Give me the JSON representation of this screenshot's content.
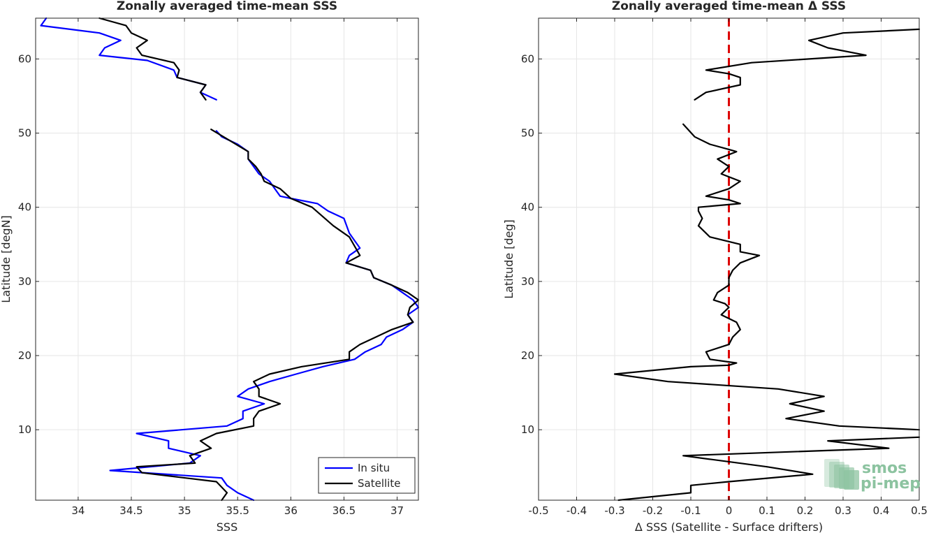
{
  "chart_data": [
    {
      "type": "line",
      "title": "Zonally averaged time-mean SSS",
      "xlabel": "SSS",
      "ylabel": "Latitude [degN]",
      "xlim": [
        33.6,
        37.2
      ],
      "ylim": [
        0.5,
        65.5
      ],
      "xticks": [
        34,
        34.5,
        35,
        35.5,
        36,
        36.5,
        37
      ],
      "xtick_labels": [
        "34",
        "34.5",
        "35",
        "35.5",
        "36",
        "36.5",
        "37"
      ],
      "yticks": [
        10,
        20,
        30,
        40,
        50,
        60
      ],
      "ytick_labels": [
        "10",
        "20",
        "30",
        "40",
        "50",
        "60"
      ],
      "grid": true,
      "legend": {
        "position": "bottom-right",
        "entries": [
          "In situ",
          "Satellite"
        ]
      },
      "series": [
        {
          "name": "In situ",
          "color": "#0000ff",
          "segments": [
            [
              [
                33.65,
                64.5
              ],
              [
                33.7,
                65.5
              ]
            ],
            [
              [
                33.65,
                64.5
              ],
              [
                34.2,
                63.5
              ],
              [
                34.4,
                62.5
              ],
              [
                34.25,
                61.5
              ],
              [
                34.2,
                60.5
              ],
              [
                34.65,
                59.8
              ],
              [
                34.9,
                58.5
              ],
              [
                34.93,
                57.5
              ],
              [
                35.2,
                56.5
              ],
              [
                35.15,
                55.5
              ],
              [
                35.3,
                54.5
              ]
            ],
            [
              [
                35.3,
                50.3
              ],
              [
                35.35,
                49.5
              ],
              [
                35.5,
                48.5
              ],
              [
                35.6,
                47.5
              ],
              [
                35.6,
                46.5
              ],
              [
                35.65,
                45.5
              ],
              [
                35.7,
                44.5
              ],
              [
                35.8,
                43.5
              ],
              [
                35.85,
                42.5
              ],
              [
                35.9,
                41.5
              ],
              [
                36.0,
                41.2
              ],
              [
                36.25,
                40.5
              ],
              [
                36.35,
                39.5
              ],
              [
                36.5,
                38.5
              ],
              [
                36.55,
                36.5
              ],
              [
                36.6,
                35.5
              ],
              [
                36.65,
                34.5
              ],
              [
                36.55,
                33.5
              ],
              [
                36.52,
                32.5
              ],
              [
                36.75,
                31.5
              ],
              [
                36.78,
                30.5
              ],
              [
                36.95,
                29.5
              ],
              [
                37.05,
                28.5
              ],
              [
                37.15,
                27.5
              ],
              [
                37.2,
                26.5
              ],
              [
                37.1,
                25.5
              ],
              [
                37.15,
                24.5
              ],
              [
                37.05,
                23.5
              ],
              [
                36.9,
                22.5
              ],
              [
                36.85,
                21.5
              ],
              [
                36.7,
                20.5
              ],
              [
                36.6,
                19.5
              ],
              [
                36.3,
                18.5
              ],
              [
                36.05,
                17.5
              ],
              [
                35.8,
                16.5
              ],
              [
                35.6,
                15.5
              ],
              [
                35.5,
                14.5
              ],
              [
                35.75,
                13.5
              ],
              [
                35.55,
                12.5
              ],
              [
                35.55,
                11.5
              ],
              [
                35.4,
                10.5
              ],
              [
                34.55,
                9.5
              ],
              [
                34.85,
                8.5
              ],
              [
                34.85,
                7.5
              ],
              [
                35.15,
                6.5
              ],
              [
                35.05,
                5.5
              ],
              [
                34.3,
                4.5
              ],
              [
                35.35,
                3.5
              ],
              [
                35.4,
                2.5
              ],
              [
                35.5,
                1.5
              ],
              [
                35.65,
                0.5
              ]
            ]
          ]
        },
        {
          "name": "Satellite",
          "color": "#000000",
          "segments": [
            [
              [
                34.2,
                65.5
              ],
              [
                34.45,
                64.5
              ],
              [
                34.5,
                63.5
              ],
              [
                34.65,
                62.5
              ],
              [
                34.55,
                61.5
              ],
              [
                34.6,
                60.5
              ],
              [
                34.9,
                59.5
              ],
              [
                34.95,
                58.5
              ],
              [
                34.93,
                57.5
              ],
              [
                35.2,
                56.5
              ],
              [
                35.15,
                55.5
              ],
              [
                35.2,
                54.5
              ]
            ],
            [
              [
                35.25,
                50.5
              ],
              [
                35.6,
                47.5
              ],
              [
                35.6,
                46.5
              ],
              [
                35.67,
                45.5
              ],
              [
                35.72,
                44.5
              ],
              [
                35.75,
                43.5
              ],
              [
                35.9,
                42.5
              ],
              [
                36.0,
                41.2
              ],
              [
                36.2,
                40.0
              ],
              [
                36.4,
                37.5
              ],
              [
                36.55,
                36.0
              ],
              [
                36.65,
                33.5
              ],
              [
                36.52,
                32.5
              ],
              [
                36.75,
                31.5
              ],
              [
                36.78,
                30.5
              ],
              [
                36.95,
                29.5
              ],
              [
                37.1,
                28.5
              ],
              [
                37.2,
                27.5
              ],
              [
                37.12,
                26.5
              ],
              [
                37.1,
                25.5
              ],
              [
                37.15,
                24.5
              ],
              [
                36.95,
                23.5
              ],
              [
                36.8,
                22.5
              ],
              [
                36.65,
                21.5
              ],
              [
                36.55,
                20.5
              ],
              [
                36.55,
                19.5
              ],
              [
                36.1,
                18.5
              ],
              [
                35.8,
                17.5
              ],
              [
                35.65,
                16.5
              ],
              [
                35.7,
                15.5
              ],
              [
                35.7,
                14.5
              ],
              [
                35.9,
                13.5
              ],
              [
                35.7,
                12.5
              ],
              [
                35.65,
                11.5
              ],
              [
                35.65,
                10.5
              ],
              [
                35.3,
                9.5
              ],
              [
                35.15,
                8.5
              ],
              [
                35.25,
                7.5
              ],
              [
                35.05,
                6.5
              ],
              [
                35.1,
                5.5
              ],
              [
                34.55,
                5.0
              ],
              [
                34.6,
                4.2
              ],
              [
                35.3,
                3.0
              ],
              [
                35.4,
                1.5
              ],
              [
                35.35,
                0.5
              ]
            ]
          ]
        }
      ]
    },
    {
      "type": "line",
      "title": "Zonally averaged time-mean Δ SSS",
      "xlabel": "Δ SSS (Satellite - Surface drifters)",
      "ylabel": "Latitude [deg]",
      "xlim": [
        -0.5,
        0.5
      ],
      "ylim": [
        0.5,
        65.5
      ],
      "xticks": [
        -0.5,
        -0.4,
        -0.3,
        -0.2,
        -0.1,
        0,
        0.1,
        0.2,
        0.3,
        0.4,
        0.5
      ],
      "xtick_labels": [
        "-0.5",
        "-0.4",
        "-0.3",
        "-0.2",
        "-0.1",
        "0",
        "0.1",
        "0.2",
        "0.3",
        "0.4",
        "0.5"
      ],
      "yticks": [
        10,
        20,
        30,
        40,
        50,
        60
      ],
      "ytick_labels": [
        "10",
        "20",
        "30",
        "40",
        "50",
        "60"
      ],
      "grid": true,
      "reference_line": {
        "x": 0,
        "color": "#dd0000",
        "style": "dashed"
      },
      "series": [
        {
          "color": "#000000",
          "segments": [
            [
              [
                0.5,
                64.0
              ],
              [
                0.3,
                63.5
              ],
              [
                0.21,
                62.5
              ],
              [
                0.26,
                61.5
              ],
              [
                0.36,
                60.5
              ],
              [
                0.06,
                59.5
              ],
              [
                -0.06,
                58.5
              ],
              [
                0.0,
                58.0
              ],
              [
                0.03,
                57.5
              ],
              [
                0.03,
                56.5
              ],
              [
                -0.06,
                55.5
              ],
              [
                -0.09,
                54.5
              ]
            ],
            [
              [
                -0.12,
                51.2
              ],
              [
                -0.09,
                49.5
              ],
              [
                -0.05,
                48.5
              ],
              [
                0.0,
                47.8
              ],
              [
                0.02,
                47.5
              ],
              [
                -0.03,
                46.5
              ],
              [
                0.0,
                45.5
              ],
              [
                -0.02,
                44.5
              ],
              [
                0.03,
                43.5
              ],
              [
                0.0,
                42.5
              ],
              [
                -0.06,
                41.5
              ],
              [
                0.0,
                41.0
              ],
              [
                0.03,
                40.5
              ],
              [
                -0.08,
                40.0
              ],
              [
                -0.08,
                39.5
              ],
              [
                -0.07,
                38.5
              ],
              [
                -0.08,
                37.5
              ],
              [
                -0.06,
                36.5
              ],
              [
                -0.05,
                36.0
              ],
              [
                0.03,
                35.0
              ],
              [
                0.03,
                34.0
              ],
              [
                0.08,
                33.5
              ],
              [
                0.03,
                32.5
              ],
              [
                0.01,
                31.5
              ],
              [
                0.0,
                30.5
              ],
              [
                0.0,
                29.5
              ],
              [
                -0.03,
                28.5
              ],
              [
                -0.04,
                27.5
              ],
              [
                -0.01,
                27.0
              ],
              [
                0.0,
                26.5
              ],
              [
                -0.02,
                25.5
              ],
              [
                0.02,
                24.5
              ],
              [
                0.03,
                23.5
              ],
              [
                0.01,
                22.5
              ],
              [
                0.0,
                21.5
              ],
              [
                -0.06,
                20.5
              ],
              [
                -0.05,
                19.5
              ],
              [
                0.02,
                19.0
              ],
              [
                0.0,
                18.7
              ],
              [
                -0.1,
                18.5
              ],
              [
                -0.3,
                17.5
              ],
              [
                -0.16,
                16.5
              ],
              [
                0.13,
                15.5
              ],
              [
                0.25,
                14.5
              ],
              [
                0.16,
                13.5
              ],
              [
                0.25,
                12.5
              ],
              [
                0.15,
                11.5
              ],
              [
                0.29,
                10.5
              ],
              [
                0.5,
                10.0
              ]
            ],
            [
              [
                0.5,
                9.0
              ],
              [
                0.26,
                8.5
              ],
              [
                0.42,
                7.5
              ],
              [
                -0.12,
                6.5
              ],
              [
                0.1,
                5.0
              ],
              [
                0.22,
                4.0
              ],
              [
                0.0,
                3.0
              ],
              [
                -0.1,
                2.5
              ],
              [
                -0.1,
                1.5
              ],
              [
                -0.29,
                0.5
              ]
            ]
          ]
        }
      ]
    }
  ],
  "watermark": {
    "line1": "smos",
    "line2": "pi-mep",
    "color": "#8cc3a0"
  }
}
